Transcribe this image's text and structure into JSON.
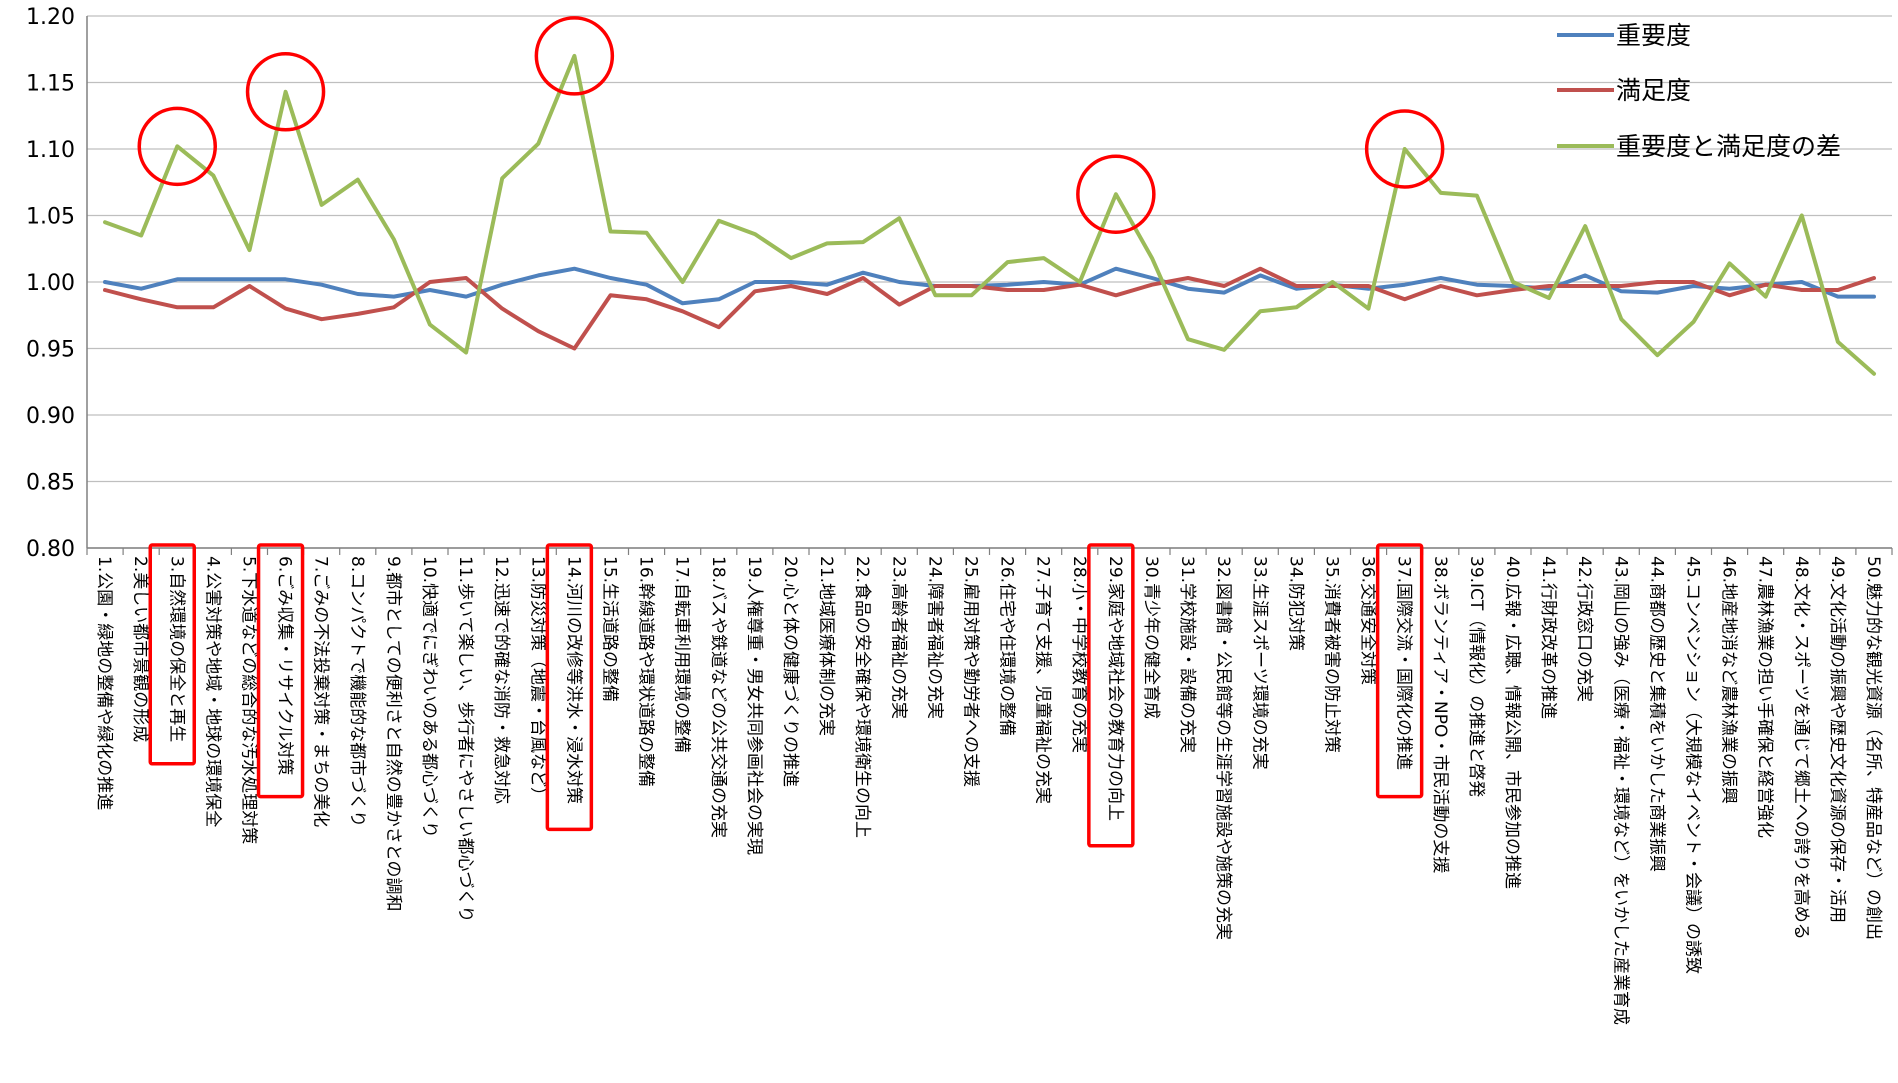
{
  "chart_data": {
    "type": "line",
    "ylim": [
      0.8,
      1.2
    ],
    "yticks": [
      "0.80",
      "0.85",
      "0.90",
      "0.95",
      "1.00",
      "1.05",
      "1.10",
      "1.15",
      "1.20"
    ],
    "grid": "horizontal",
    "legend_position": "top-right",
    "categories": [
      "1.公園・緑地の整備や緑化の推進",
      "2.美しい都市景観の形成",
      "3.自然環境の保全と再生",
      "4.公害対策や地域・地球の環境保全",
      "5.下水道などの総合的な汚水処理対策",
      "6.ごみ収集・リサイクル対策",
      "7.ごみの不法投棄対策・まちの美化",
      "8.コンパクトで機能的な都市づくり",
      "9.都市としての便利さと自然の豊かさとの調和",
      "10.快適でにぎわいのある都心づくり",
      "11.歩いて楽しい、歩行者にやさしい都心づくり",
      "12.迅速で的確な消防・救急対応",
      "13.防災対策（地震・台風など）",
      "14.河川の改修等洪水・浸水対策",
      "15.生活道路の整備",
      "16.幹線道路や環状道路の整備",
      "17.自転車利用環境の整備",
      "18.バスや鉄道などの公共交通の充実",
      "19.人権尊重・男女共同参画社会の実現",
      "20.心と体の健康づくりの推進",
      "21.地域医療体制の充実",
      "22.食品の安全確保や環境衛生の向上",
      "23.高齢者福祉の充実",
      "24.障害者福祉の充実",
      "25.雇用対策や勤労者への支援",
      "26.住宅や住環境の整備",
      "27.子育て支援、児童福祉の充実",
      "28.小・中学校教育の充実",
      "29.家庭や地域社会の教育力の向上",
      "30.青少年の健全育成",
      "31.学校施設・設備の充実",
      "32.図書館・公民館等の生涯学習施設や施策の充実",
      "33.生涯スポーツ環境の充実",
      "34.防犯対策",
      "35.消費者被害の防止対策",
      "36.交通安全対策",
      "37.国際交流・国際化の推進",
      "38.ボランティア・NPO・市民活動の支援",
      "39.ICT（情報化）の推進と啓発",
      "40.広報・広聴、情報公開、市民参加の推進",
      "41.行財政改革の推進",
      "42.行政窓口の充実",
      "43.岡山の強み（医療・福祉・環境など）をいかした産業育成",
      "44.商都の歴史と集積をいかした商業振興",
      "45.コンベンション（大規模なイベント・会議）の誘致",
      "46.地産地消など農林漁業の振興",
      "47.農林漁業の担い手確保と経営強化",
      "48.文化・スポーツを通じて郷土への誇りを高める",
      "49.文化活動の振興や歴史文化資源の保存・活用",
      "50.魅力的な観光資源（名所、特産品など）の創出"
    ],
    "highlighted_categories": [
      3,
      6,
      14,
      29,
      37
    ],
    "circled_points": [
      3,
      6,
      14,
      29,
      37
    ],
    "series": [
      {
        "name": "重要度",
        "color": "#4f81bd",
        "values": [
          1.0,
          0.995,
          1.002,
          1.002,
          1.002,
          1.002,
          0.998,
          0.991,
          0.989,
          0.994,
          0.989,
          0.998,
          1.005,
          1.01,
          1.003,
          0.998,
          0.984,
          0.987,
          1.0,
          1.0,
          0.998,
          1.007,
          1.0,
          0.997,
          0.997,
          0.998,
          1.0,
          0.998,
          1.01,
          1.003,
          0.995,
          0.992,
          1.005,
          0.995,
          0.998,
          0.995,
          0.998,
          1.003,
          0.998,
          0.997,
          0.995,
          1.005,
          0.993,
          0.992,
          0.997,
          0.995,
          0.998,
          1.0,
          0.989,
          0.989
        ]
      },
      {
        "name": "満足度",
        "color": "#c0504d",
        "values": [
          0.994,
          0.987,
          0.981,
          0.981,
          0.997,
          0.98,
          0.972,
          0.976,
          0.981,
          1.0,
          1.003,
          0.98,
          0.963,
          0.95,
          0.99,
          0.987,
          0.978,
          0.966,
          0.993,
          0.997,
          0.991,
          1.003,
          0.983,
          0.997,
          0.997,
          0.994,
          0.994,
          0.998,
          0.99,
          0.998,
          1.003,
          0.997,
          1.01,
          0.997,
          0.997,
          0.997,
          0.987,
          0.997,
          0.99,
          0.994,
          0.997,
          0.997,
          0.997,
          1.0,
          1.0,
          0.99,
          0.998,
          0.994,
          0.994,
          1.003
        ]
      },
      {
        "name": "重要度と満足度の差",
        "color": "#9bbb59",
        "values": [
          1.045,
          1.035,
          1.102,
          1.08,
          1.024,
          1.143,
          1.058,
          1.077,
          1.032,
          0.968,
          0.947,
          1.078,
          1.104,
          1.17,
          1.038,
          1.037,
          1.0,
          1.046,
          1.036,
          1.018,
          1.029,
          1.03,
          1.048,
          0.99,
          0.99,
          1.015,
          1.018,
          1.0,
          1.066,
          1.018,
          0.957,
          0.949,
          0.978,
          0.981,
          1.0,
          0.98,
          1.1,
          1.067,
          1.065,
          1.0,
          0.988,
          1.042,
          0.972,
          0.945,
          0.97,
          1.014,
          0.989,
          1.05,
          0.955,
          0.931
        ]
      }
    ]
  }
}
